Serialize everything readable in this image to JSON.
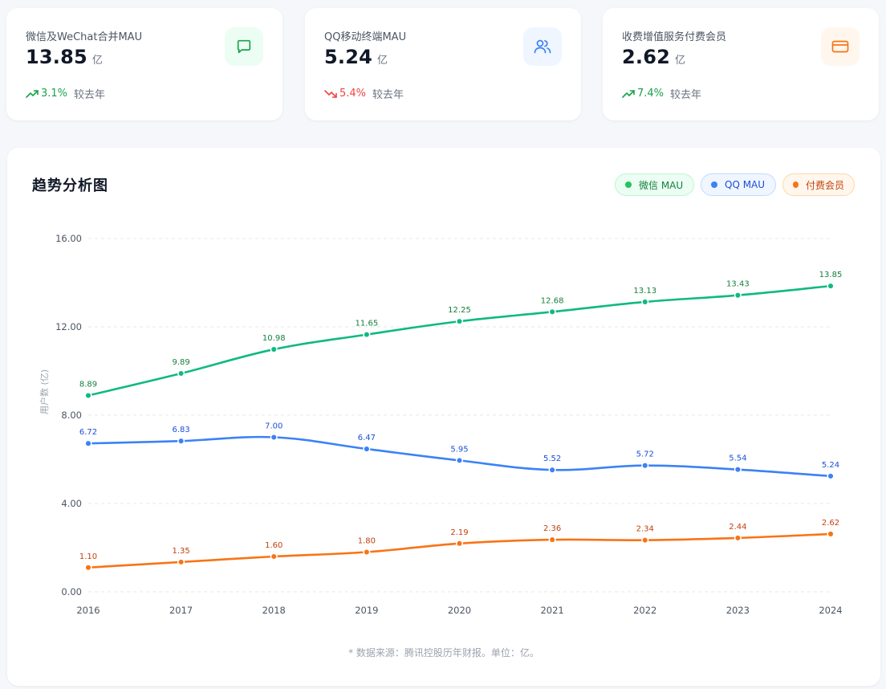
{
  "colors": {
    "wechat": "#10b981",
    "qq": "#3b82f6",
    "paid": "#f97316",
    "up": "#16a34a",
    "down": "#ef4444"
  },
  "cards": [
    {
      "label": "微信及WeChat合并MAU",
      "value": "13.85",
      "unit": "亿",
      "change": "3.1%",
      "direction": "up",
      "compare": "较去年",
      "icon": "chat-bubble-icon"
    },
    {
      "label": "QQ移动终端MAU",
      "value": "5.24",
      "unit": "亿",
      "change": "5.4%",
      "direction": "down",
      "compare": "较去年",
      "icon": "users-icon"
    },
    {
      "label": "收费增值服务付费会员",
      "value": "2.62",
      "unit": "亿",
      "change": "7.4%",
      "direction": "up",
      "compare": "较去年",
      "icon": "credit-card-icon"
    }
  ],
  "chart": {
    "title": "趋势分析图",
    "legend": [
      "微信 MAU",
      "QQ MAU",
      "付费会员"
    ],
    "footnote": "* 数据来源：腾讯控股历年财报。单位：亿。"
  },
  "chart_data": {
    "type": "line",
    "x": [
      "2016",
      "2017",
      "2018",
      "2019",
      "2020",
      "2021",
      "2022",
      "2023",
      "2024"
    ],
    "ylabel": "用户数 (亿)",
    "ylim": [
      0,
      16
    ],
    "yticks": [
      "0.00",
      "4.00",
      "8.00",
      "12.00",
      "16.00"
    ],
    "grid": true,
    "legend_position": "top-right",
    "series": [
      {
        "name": "微信 MAU",
        "color": "#10b981",
        "values": [
          8.89,
          9.89,
          10.98,
          11.65,
          12.25,
          12.68,
          13.13,
          13.43,
          13.85
        ]
      },
      {
        "name": "QQ MAU",
        "color": "#3b82f6",
        "values": [
          6.72,
          6.83,
          7.0,
          6.47,
          5.95,
          5.52,
          5.72,
          5.54,
          5.24
        ]
      },
      {
        "name": "付费会员",
        "color": "#f97316",
        "values": [
          1.1,
          1.35,
          1.6,
          1.8,
          2.19,
          2.36,
          2.34,
          2.44,
          2.62
        ]
      }
    ]
  }
}
